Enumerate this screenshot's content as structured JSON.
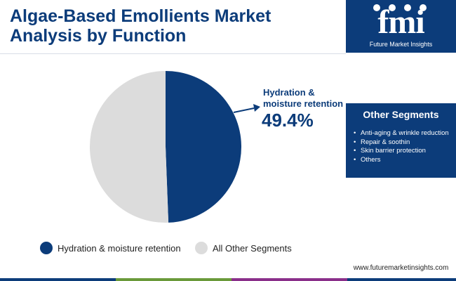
{
  "title": {
    "line1": "Algae-Based Emollients Market",
    "line2": "Analysis by Function"
  },
  "logo": {
    "word": "fmi",
    "subtitle": "Future Market Insights",
    "icons": [
      "globe-icon",
      "chart-icon",
      "person-icon",
      "leaf-icon"
    ]
  },
  "other_segments": {
    "title": "Other Segments",
    "items": [
      "Anti-aging & wrinkle reduction",
      "Repair & soothin",
      "Skin barrier protection",
      "Others"
    ]
  },
  "website": "www.futuremarketinsights.com",
  "callout": {
    "label": "Hydration & moisture retention",
    "value": "49.4%"
  },
  "colors": {
    "brand": "#0c3c7a",
    "other": "#dcdcdc",
    "bottom_bar": [
      "#0c3c7a",
      "#6a9a3a",
      "#8a2f8a",
      "#0c3c7a"
    ]
  },
  "chart_data": {
    "type": "pie",
    "title": "Algae-Based Emollients Market Analysis by Function",
    "slices": [
      {
        "label": "Hydration & moisture retention",
        "value": 49.4,
        "color": "#0c3c7a"
      },
      {
        "label": "All Other Segments",
        "value": 50.6,
        "color": "#dcdcdc"
      }
    ],
    "legend_position": "bottom",
    "data_labels": [
      {
        "slice": "Hydration & moisture retention",
        "text": "49.4%"
      }
    ]
  },
  "legend": {
    "items": [
      {
        "label": "Hydration & moisture retention",
        "color": "#0c3c7a"
      },
      {
        "label": "All Other Segments",
        "color": "#dcdcdc"
      }
    ]
  }
}
